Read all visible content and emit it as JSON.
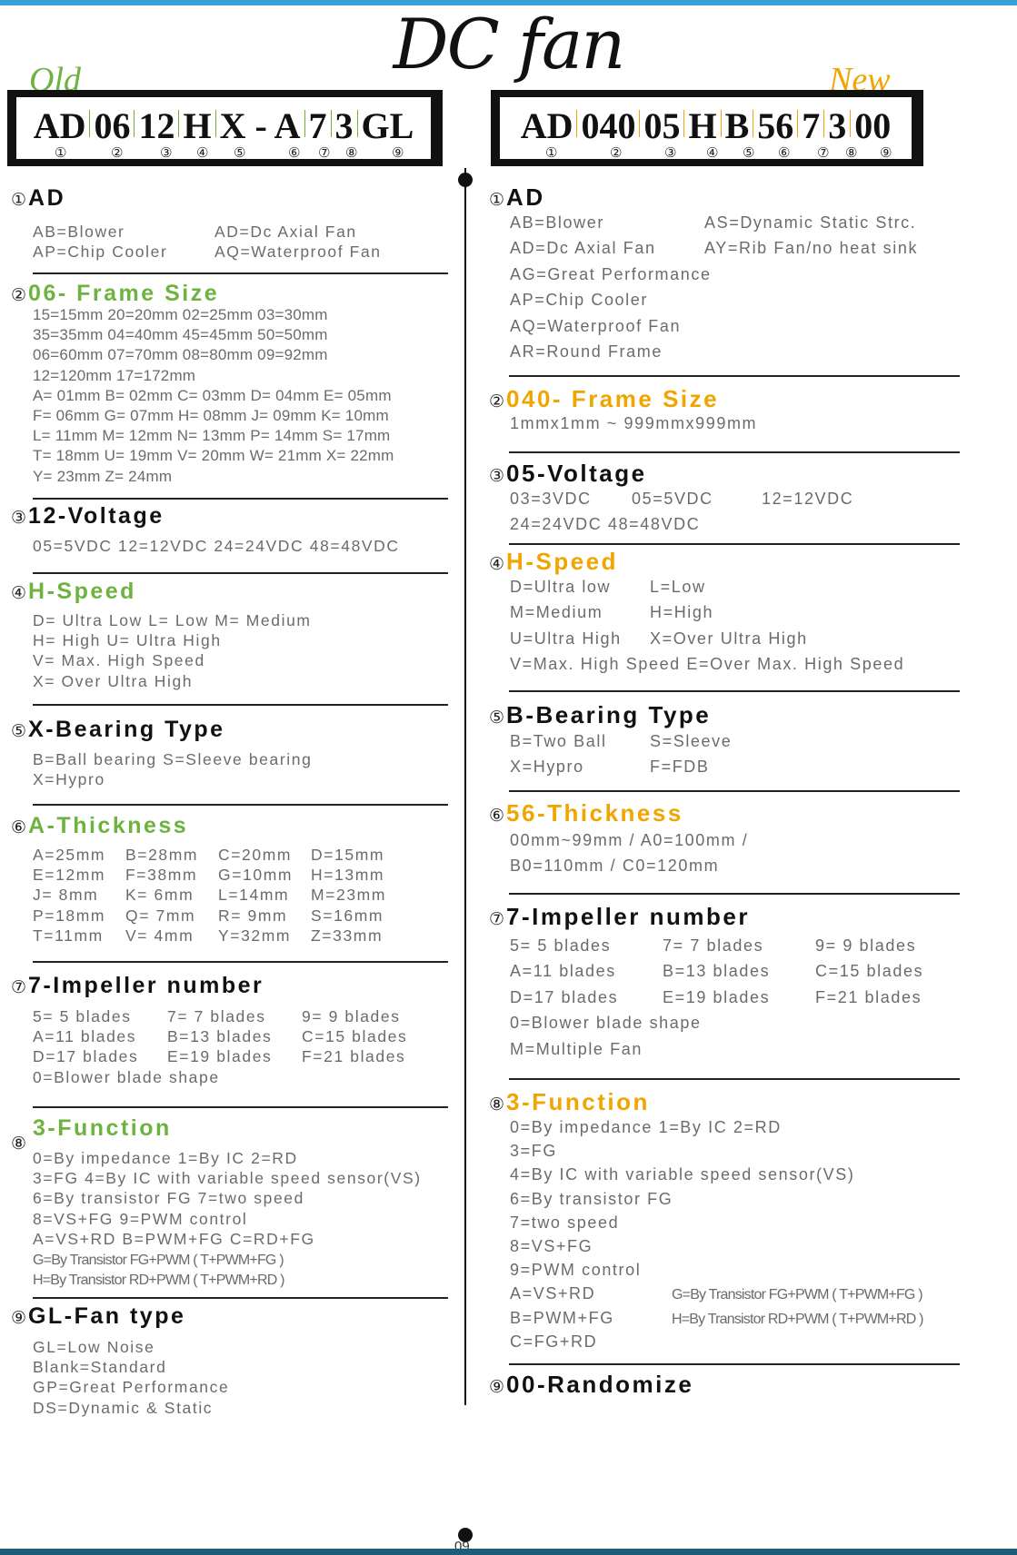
{
  "title": "DC fan",
  "page_number": "09",
  "colors": {
    "old": "#6db33f",
    "new": "#f0a500",
    "top_bar": "#3aa0d8",
    "bottom_bar": "#1e5d78"
  },
  "old": {
    "label": "Old",
    "code": [
      "AD",
      "06",
      "12",
      "H",
      "X - A",
      "7",
      "3",
      "GL"
    ],
    "numbers": [
      "①",
      "②",
      "③",
      "④",
      "⑤",
      "⑥",
      "⑦",
      "⑧",
      "⑨"
    ],
    "sections": [
      {
        "circle": "①",
        "title": "AD",
        "color": "black",
        "rows": [
          [
            "AB=Blower",
            "AD=Dc Axial Fan"
          ],
          [
            "AP=Chip Cooler",
            "AQ=Waterproof Fan"
          ]
        ]
      },
      {
        "circle": "②",
        "title": "06- Frame Size",
        "color": "old",
        "rows": [
          [
            "15=15mm  20=20mm  02=25mm  03=30mm"
          ],
          [
            "35=35mm  04=40mm  45=45mm  50=50mm"
          ],
          [
            "06=60mm  07=70mm  08=80mm  09=92mm"
          ],
          [
            "12=120mm  17=172mm"
          ],
          [
            "A= 01mm  B= 02mm  C= 03mm  D= 04mm  E= 05mm"
          ],
          [
            "F= 06mm  G= 07mm  H= 08mm  J= 09mm  K= 10mm"
          ],
          [
            "L= 11mm  M= 12mm  N= 13mm  P= 14mm  S= 17mm"
          ],
          [
            "T= 18mm  U= 19mm  V= 20mm  W= 21mm X= 22mm"
          ],
          [
            "Y= 23mm  Z= 24mm"
          ]
        ]
      },
      {
        "circle": "③",
        "title": "12-Voltage",
        "color": "black",
        "rows": [
          [
            "05=5VDC 12=12VDC 24=24VDC 48=48VDC"
          ]
        ]
      },
      {
        "circle": "④",
        "title": "H-Speed",
        "color": "old",
        "rows": [
          [
            "D= Ultra Low   L= Low  M= Medium"
          ],
          [
            "H= High    U= Ultra High"
          ],
          [
            "V= Max. High Speed"
          ],
          [
            "X= Over Ultra High"
          ]
        ]
      },
      {
        "circle": "⑤",
        "title": "X-Bearing Type",
        "color": "black",
        "rows": [
          [
            "B=Ball bearing   S=Sleeve bearing"
          ],
          [
            "X=Hypro"
          ]
        ]
      },
      {
        "circle": "⑥",
        "title": "A-Thickness",
        "color": "old",
        "rows": [
          [
            "A=25mm",
            "B=28mm",
            "C=20mm",
            "D=15mm"
          ],
          [
            "E=12mm",
            "F=38mm",
            "G=10mm",
            "H=13mm"
          ],
          [
            "J=  8mm",
            "K=  6mm",
            "L=14mm",
            "M=23mm"
          ],
          [
            "P=18mm",
            "Q=  7mm",
            "R=  9mm",
            "S=16mm"
          ],
          [
            "T=11mm",
            "V=  4mm",
            "Y=32mm",
            "Z=33mm"
          ]
        ]
      },
      {
        "circle": "⑦",
        "title": "7-Impeller number",
        "color": "black",
        "rows": [
          [
            "5= 5  blades",
            "7= 7  blades",
            "9= 9  blades"
          ],
          [
            "A=11 blades",
            "B=13 blades",
            "C=15 blades"
          ],
          [
            "D=17 blades",
            "E=19 blades",
            "F=21 blades"
          ],
          [
            "0=Blower blade shape"
          ]
        ]
      },
      {
        "circle": "⑧",
        "title": "3-Function",
        "color": "old",
        "rows": [
          [
            "0=By impedance    1=By IC     2=RD"
          ],
          [
            "3=FG  4=By IC with variable speed sensor(VS)"
          ],
          [
            "6=By transistor FG     7=two speed"
          ],
          [
            "8=VS+FG     9=PWM control"
          ],
          [
            "A=VS+RD      B=PWM+FG      C=RD+FG"
          ],
          [
            "G=By Transistor FG+PWM ( T+PWM+FG )"
          ],
          [
            "H=By Transistor RD+PWM ( T+PWM+RD )"
          ]
        ]
      },
      {
        "circle": "⑨",
        "title": "GL-Fan type",
        "color": "black",
        "rows": [
          [
            "GL=Low Noise"
          ],
          [
            "Blank=Standard"
          ],
          [
            "GP=Great Performance"
          ],
          [
            "DS=Dynamic & Static"
          ]
        ]
      }
    ]
  },
  "new": {
    "label": "New",
    "code": [
      "AD",
      "040",
      "05",
      "H",
      "B",
      "56",
      "7",
      "3",
      "00"
    ],
    "numbers": [
      "①",
      "②",
      "③",
      "④",
      "⑤",
      "⑥",
      "⑦",
      "⑧",
      "⑨"
    ],
    "sections": [
      {
        "circle": "①",
        "title": "AD",
        "color": "black",
        "rows": [
          [
            "AB=Blower",
            "AS=Dynamic Static Strc."
          ],
          [
            "AD=Dc Axial Fan",
            "AY=Rib Fan/no heat sink"
          ],
          [
            "AG=Great Performance"
          ],
          [
            "AP=Chip Cooler"
          ],
          [
            "AQ=Waterproof Fan"
          ],
          [
            "AR=Round Frame"
          ]
        ]
      },
      {
        "circle": "②",
        "title": "040- Frame Size",
        "color": "new",
        "rows": [
          [
            "1mmx1mm ~ 999mmx999mm"
          ]
        ]
      },
      {
        "circle": "③",
        "title": "05-Voltage",
        "color": "black",
        "rows": [
          [
            "03=3VDC",
            "05=5VDC",
            "12=12VDC"
          ],
          [
            "24=24VDC  48=48VDC"
          ]
        ]
      },
      {
        "circle": "④",
        "title": "H-Speed",
        "color": "new",
        "rows": [
          [
            "D=Ultra low",
            "L=Low"
          ],
          [
            "M=Medium",
            "H=High"
          ],
          [
            "U=Ultra High",
            "X=Over Ultra High"
          ],
          [
            "V=Max. High Speed  E=Over Max. High Speed"
          ]
        ]
      },
      {
        "circle": "⑤",
        "title": "B-Bearing Type",
        "color": "black",
        "rows": [
          [
            "B=Two Ball",
            "S=Sleeve"
          ],
          [
            "X=Hypro",
            "F=FDB"
          ]
        ]
      },
      {
        "circle": "⑥",
        "title": "56-Thickness",
        "color": "new",
        "rows": [
          [
            "00mm~99mm / A0=100mm /"
          ],
          [
            "B0=110mm / C0=120mm"
          ]
        ]
      },
      {
        "circle": "⑦",
        "title": "7-Impeller number",
        "color": "black",
        "rows": [
          [
            "5= 5  blades",
            "7= 7  blades",
            "9= 9  blades"
          ],
          [
            "A=11 blades",
            "B=13 blades",
            "C=15 blades"
          ],
          [
            "D=17 blades",
            "E=19 blades",
            "F=21 blades"
          ],
          [
            "0=Blower blade shape"
          ],
          [
            "M=Multiple Fan"
          ]
        ]
      },
      {
        "circle": "⑧",
        "title": "3-Function",
        "color": "new",
        "rows": [
          [
            "0=By impedance    1=By IC     2=RD"
          ],
          [
            "3=FG"
          ],
          [
            "4=By IC with variable speed sensor(VS)"
          ],
          [
            "6=By transistor FG"
          ],
          [
            "7=two speed"
          ],
          [
            "8=VS+FG"
          ],
          [
            "9=PWM control"
          ],
          [
            "A=VS+RD",
            "G=By Transistor FG+PWM ( T+PWM+FG )"
          ],
          [
            "B=PWM+FG",
            "H=By Transistor RD+PWM ( T+PWM+RD )"
          ],
          [
            "C=FG+RD"
          ]
        ]
      },
      {
        "circle": "⑨",
        "title": "00-Randomize",
        "color": "black",
        "rows": []
      }
    ]
  }
}
